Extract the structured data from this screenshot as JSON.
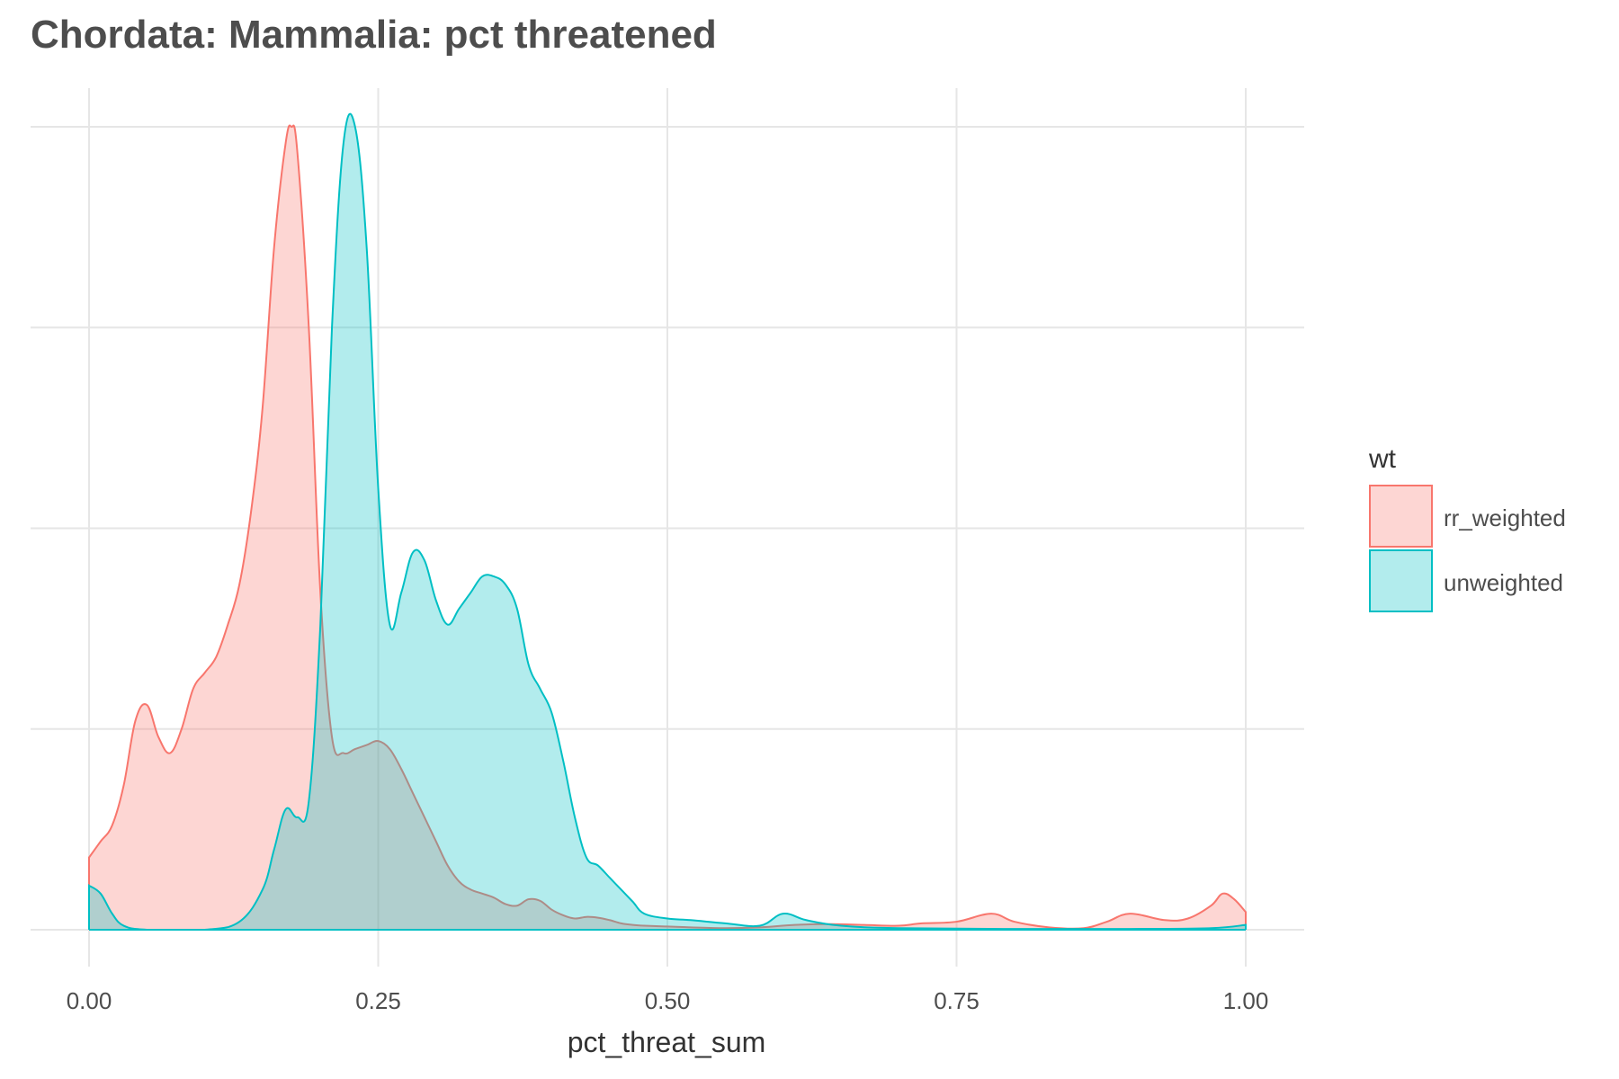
{
  "chart_data": {
    "type": "area",
    "title": "Chordata: Mammalia: pct threatened",
    "xlabel": "pct_threat_sum",
    "ylabel": "",
    "xlim": [
      0,
      1
    ],
    "ylim": [
      0,
      1
    ],
    "x_ticks": [
      "0.00",
      "0.25",
      "0.50",
      "0.75",
      "1.00"
    ],
    "y_ticks_labeled": false,
    "grid": true,
    "legend": {
      "title": "wt",
      "position": "right"
    },
    "series": [
      {
        "name": "rr_weighted",
        "color": "#F8766D",
        "fill": "#F8766D",
        "fill_opacity": 0.3,
        "x": [
          0.0,
          0.01,
          0.02,
          0.03,
          0.04,
          0.05,
          0.06,
          0.07,
          0.08,
          0.09,
          0.1,
          0.11,
          0.12,
          0.13,
          0.14,
          0.15,
          0.16,
          0.17,
          0.175,
          0.18,
          0.19,
          0.2,
          0.21,
          0.22,
          0.23,
          0.24,
          0.25,
          0.26,
          0.27,
          0.28,
          0.29,
          0.3,
          0.31,
          0.32,
          0.33,
          0.34,
          0.35,
          0.36,
          0.37,
          0.38,
          0.39,
          0.4,
          0.41,
          0.42,
          0.43,
          0.44,
          0.45,
          0.46,
          0.47,
          0.48,
          0.5,
          0.52,
          0.55,
          0.58,
          0.61,
          0.64,
          0.67,
          0.7,
          0.72,
          0.75,
          0.78,
          0.8,
          0.83,
          0.86,
          0.88,
          0.9,
          0.93,
          0.95,
          0.97,
          0.98,
          0.99,
          1.0
        ],
        "values": [
          0.09,
          0.11,
          0.13,
          0.18,
          0.26,
          0.28,
          0.24,
          0.22,
          0.25,
          0.3,
          0.32,
          0.34,
          0.38,
          0.43,
          0.52,
          0.65,
          0.85,
          0.98,
          1.0,
          0.97,
          0.75,
          0.42,
          0.24,
          0.22,
          0.225,
          0.23,
          0.235,
          0.225,
          0.2,
          0.17,
          0.14,
          0.11,
          0.08,
          0.06,
          0.05,
          0.045,
          0.04,
          0.032,
          0.03,
          0.038,
          0.036,
          0.025,
          0.018,
          0.014,
          0.016,
          0.015,
          0.012,
          0.008,
          0.006,
          0.005,
          0.004,
          0.003,
          0.002,
          0.003,
          0.006,
          0.007,
          0.006,
          0.005,
          0.008,
          0.01,
          0.02,
          0.01,
          0.003,
          0.002,
          0.01,
          0.02,
          0.012,
          0.014,
          0.03,
          0.045,
          0.038,
          0.022
        ]
      },
      {
        "name": "unweighted",
        "color": "#00BFC4",
        "fill": "#00BFC4",
        "fill_opacity": 0.3,
        "x": [
          0.0,
          0.01,
          0.02,
          0.03,
          0.05,
          0.1,
          0.13,
          0.15,
          0.16,
          0.17,
          0.18,
          0.19,
          0.2,
          0.21,
          0.22,
          0.23,
          0.24,
          0.25,
          0.26,
          0.27,
          0.28,
          0.29,
          0.3,
          0.31,
          0.32,
          0.33,
          0.34,
          0.35,
          0.36,
          0.37,
          0.38,
          0.39,
          0.4,
          0.41,
          0.42,
          0.43,
          0.44,
          0.45,
          0.46,
          0.47,
          0.48,
          0.5,
          0.52,
          0.55,
          0.58,
          0.6,
          0.62,
          0.65,
          0.7,
          0.8,
          0.9,
          0.97,
          1.0
        ],
        "values": [
          0.055,
          0.045,
          0.02,
          0.005,
          0.0,
          0.0,
          0.01,
          0.05,
          0.1,
          0.15,
          0.14,
          0.16,
          0.38,
          0.75,
          0.98,
          1.0,
          0.85,
          0.55,
          0.38,
          0.42,
          0.47,
          0.46,
          0.41,
          0.38,
          0.4,
          0.42,
          0.44,
          0.44,
          0.43,
          0.4,
          0.33,
          0.3,
          0.27,
          0.21,
          0.14,
          0.09,
          0.08,
          0.065,
          0.05,
          0.035,
          0.02,
          0.014,
          0.012,
          0.008,
          0.005,
          0.02,
          0.012,
          0.005,
          0.002,
          0.001,
          0.001,
          0.002,
          0.006
        ]
      }
    ]
  }
}
